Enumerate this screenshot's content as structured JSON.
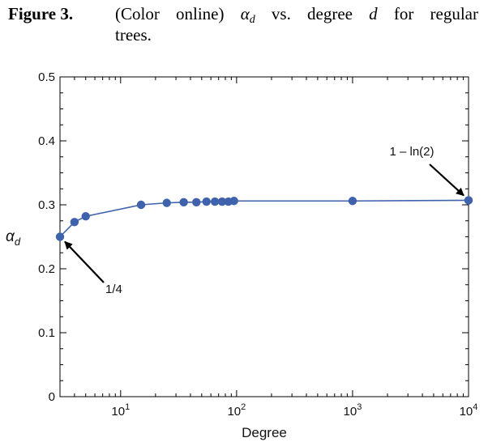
{
  "caption": {
    "label": "Figure 3.",
    "text_part1": "(Color online) ",
    "alpha_symbol": "α",
    "alpha_subscript": "d",
    "text_part2": " vs. degree ",
    "d_symbol": "d",
    "text_part3": " for regular",
    "text_line2": "trees."
  },
  "chart_data": {
    "type": "line",
    "x_scale": "log",
    "xlabel": "Degree",
    "ylabel": {
      "symbol": "α",
      "subscript": "d"
    },
    "xlim": [
      3,
      10000
    ],
    "ylim": [
      0,
      0.5
    ],
    "y_ticks": [
      {
        "value": 0,
        "label": "0"
      },
      {
        "value": 0.1,
        "label": "0.1"
      },
      {
        "value": 0.2,
        "label": "0.2"
      },
      {
        "value": 0.3,
        "label": "0.3"
      },
      {
        "value": 0.4,
        "label": "0.4"
      },
      {
        "value": 0.5,
        "label": "0.5"
      }
    ],
    "x_ticks": [
      {
        "value": 10,
        "base": "10",
        "exponent": "1"
      },
      {
        "value": 100,
        "base": "10",
        "exponent": "2"
      },
      {
        "value": 1000,
        "base": "10",
        "exponent": "3"
      },
      {
        "value": 10000,
        "base": "10",
        "exponent": "4"
      }
    ],
    "series": [
      {
        "color": "#3f62ad",
        "points": [
          {
            "x": 3,
            "y": 0.25
          },
          {
            "x": 4,
            "y": 0.273
          },
          {
            "x": 5,
            "y": 0.282
          },
          {
            "x": 15,
            "y": 0.3
          },
          {
            "x": 25,
            "y": 0.303
          },
          {
            "x": 35,
            "y": 0.304
          },
          {
            "x": 45,
            "y": 0.304
          },
          {
            "x": 55,
            "y": 0.305
          },
          {
            "x": 65,
            "y": 0.305
          },
          {
            "x": 75,
            "y": 0.305
          },
          {
            "x": 85,
            "y": 0.305
          },
          {
            "x": 95,
            "y": 0.306
          },
          {
            "x": 1000,
            "y": 0.306
          },
          {
            "x": 10000,
            "y": 0.307
          }
        ]
      }
    ],
    "annotations": [
      {
        "text": "1/4",
        "points_to": {
          "x": 3,
          "y": 0.25
        }
      },
      {
        "text": "1 – ln(2)",
        "points_to": {
          "x": 10000,
          "y": 0.307
        }
      }
    ],
    "grid": false
  }
}
